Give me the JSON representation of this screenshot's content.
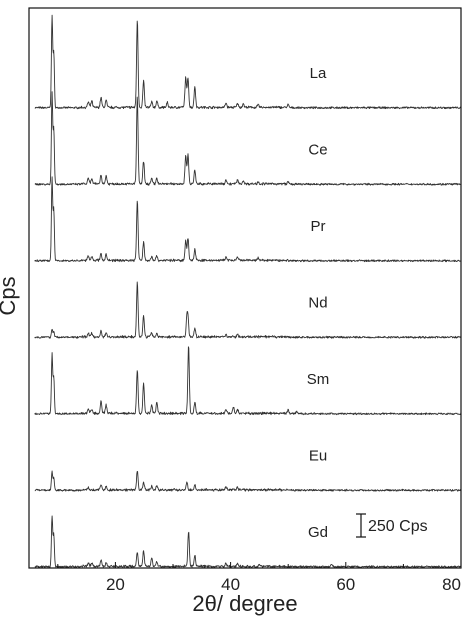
{
  "chart_data": {
    "type": "line",
    "title": "",
    "xlabel": "2θ/ degree",
    "ylabel": "Cps",
    "xlim": [
      5,
      80
    ],
    "x_ticks": [
      20,
      40,
      60,
      80
    ],
    "grid": false,
    "scale_bar": {
      "label": "250 Cps",
      "value": 250
    },
    "series": [
      {
        "name": "La",
        "baseline": 0,
        "peaks": [
          [
            9.0,
            1000
          ],
          [
            9.3,
            600
          ],
          [
            15.3,
            60
          ],
          [
            15.9,
            70
          ],
          [
            17.5,
            110
          ],
          [
            18.4,
            80
          ],
          [
            23.8,
            950
          ],
          [
            24.9,
            290
          ],
          [
            26.3,
            60
          ],
          [
            27.2,
            70
          ],
          [
            29.0,
            50
          ],
          [
            32.2,
            330
          ],
          [
            32.6,
            320
          ],
          [
            33.8,
            230
          ],
          [
            39.2,
            50
          ],
          [
            41.2,
            45
          ],
          [
            42.2,
            40
          ],
          [
            44.8,
            30
          ],
          [
            50.0,
            30
          ]
        ]
      },
      {
        "name": "Ce",
        "baseline": 1,
        "peaks": [
          [
            9.0,
            1000
          ],
          [
            9.3,
            600
          ],
          [
            15.3,
            60
          ],
          [
            15.9,
            55
          ],
          [
            17.5,
            100
          ],
          [
            18.4,
            90
          ],
          [
            23.8,
            950
          ],
          [
            24.9,
            250
          ],
          [
            26.3,
            60
          ],
          [
            27.2,
            65
          ],
          [
            32.2,
            300
          ],
          [
            32.6,
            320
          ],
          [
            33.8,
            150
          ],
          [
            39.2,
            50
          ],
          [
            41.2,
            45
          ],
          [
            42.2,
            35
          ],
          [
            44.8,
            25
          ],
          [
            50.0,
            25
          ]
        ]
      },
      {
        "name": "Pr",
        "baseline": 2,
        "peaks": [
          [
            9.0,
            900
          ],
          [
            9.3,
            550
          ],
          [
            15.3,
            50
          ],
          [
            15.9,
            45
          ],
          [
            17.5,
            75
          ],
          [
            18.4,
            65
          ],
          [
            23.8,
            650
          ],
          [
            24.9,
            200
          ],
          [
            26.3,
            45
          ],
          [
            27.2,
            50
          ],
          [
            32.2,
            220
          ],
          [
            32.6,
            240
          ],
          [
            33.8,
            120
          ],
          [
            39.2,
            40
          ],
          [
            41.2,
            35
          ],
          [
            44.8,
            25
          ]
        ]
      },
      {
        "name": "Nd",
        "baseline": 3,
        "peaks": [
          [
            9.0,
            90
          ],
          [
            9.3,
            60
          ],
          [
            15.3,
            45
          ],
          [
            15.9,
            40
          ],
          [
            17.5,
            65
          ],
          [
            18.4,
            45
          ],
          [
            23.8,
            600
          ],
          [
            24.9,
            230
          ],
          [
            26.3,
            45
          ],
          [
            27.2,
            40
          ],
          [
            32.4,
            200
          ],
          [
            32.6,
            180
          ],
          [
            33.8,
            95
          ],
          [
            39.2,
            30
          ],
          [
            41.2,
            30
          ]
        ]
      },
      {
        "name": "Sm",
        "baseline": 4,
        "peaks": [
          [
            9.0,
            650
          ],
          [
            9.3,
            400
          ],
          [
            15.3,
            45
          ],
          [
            15.9,
            45
          ],
          [
            17.5,
            130
          ],
          [
            18.4,
            90
          ],
          [
            23.8,
            480
          ],
          [
            24.9,
            330
          ],
          [
            26.3,
            90
          ],
          [
            27.2,
            120
          ],
          [
            32.7,
            730
          ],
          [
            33.8,
            120
          ],
          [
            39.2,
            40
          ],
          [
            40.5,
            70
          ],
          [
            41.2,
            40
          ],
          [
            50.0,
            45
          ],
          [
            51.5,
            25
          ]
        ]
      },
      {
        "name": "Eu",
        "baseline": 5,
        "peaks": [
          [
            9.0,
            200
          ],
          [
            9.3,
            130
          ],
          [
            15.3,
            30
          ],
          [
            17.5,
            55
          ],
          [
            18.4,
            40
          ],
          [
            23.8,
            210
          ],
          [
            24.9,
            90
          ],
          [
            26.3,
            40
          ],
          [
            27.2,
            45
          ],
          [
            32.4,
            90
          ],
          [
            33.8,
            55
          ],
          [
            39.2,
            30
          ],
          [
            41.2,
            25
          ]
        ]
      },
      {
        "name": "Gd",
        "baseline": 6,
        "peaks": [
          [
            9.0,
            550
          ],
          [
            9.3,
            350
          ],
          [
            15.3,
            35
          ],
          [
            15.9,
            40
          ],
          [
            17.5,
            65
          ],
          [
            18.4,
            45
          ],
          [
            23.8,
            150
          ],
          [
            24.9,
            170
          ],
          [
            26.3,
            90
          ],
          [
            27.2,
            50
          ],
          [
            32.7,
            380
          ],
          [
            33.8,
            120
          ],
          [
            39.2,
            35
          ],
          [
            41.2,
            30
          ],
          [
            45.0,
            20
          ],
          [
            57.5,
            25
          ]
        ]
      }
    ]
  }
}
